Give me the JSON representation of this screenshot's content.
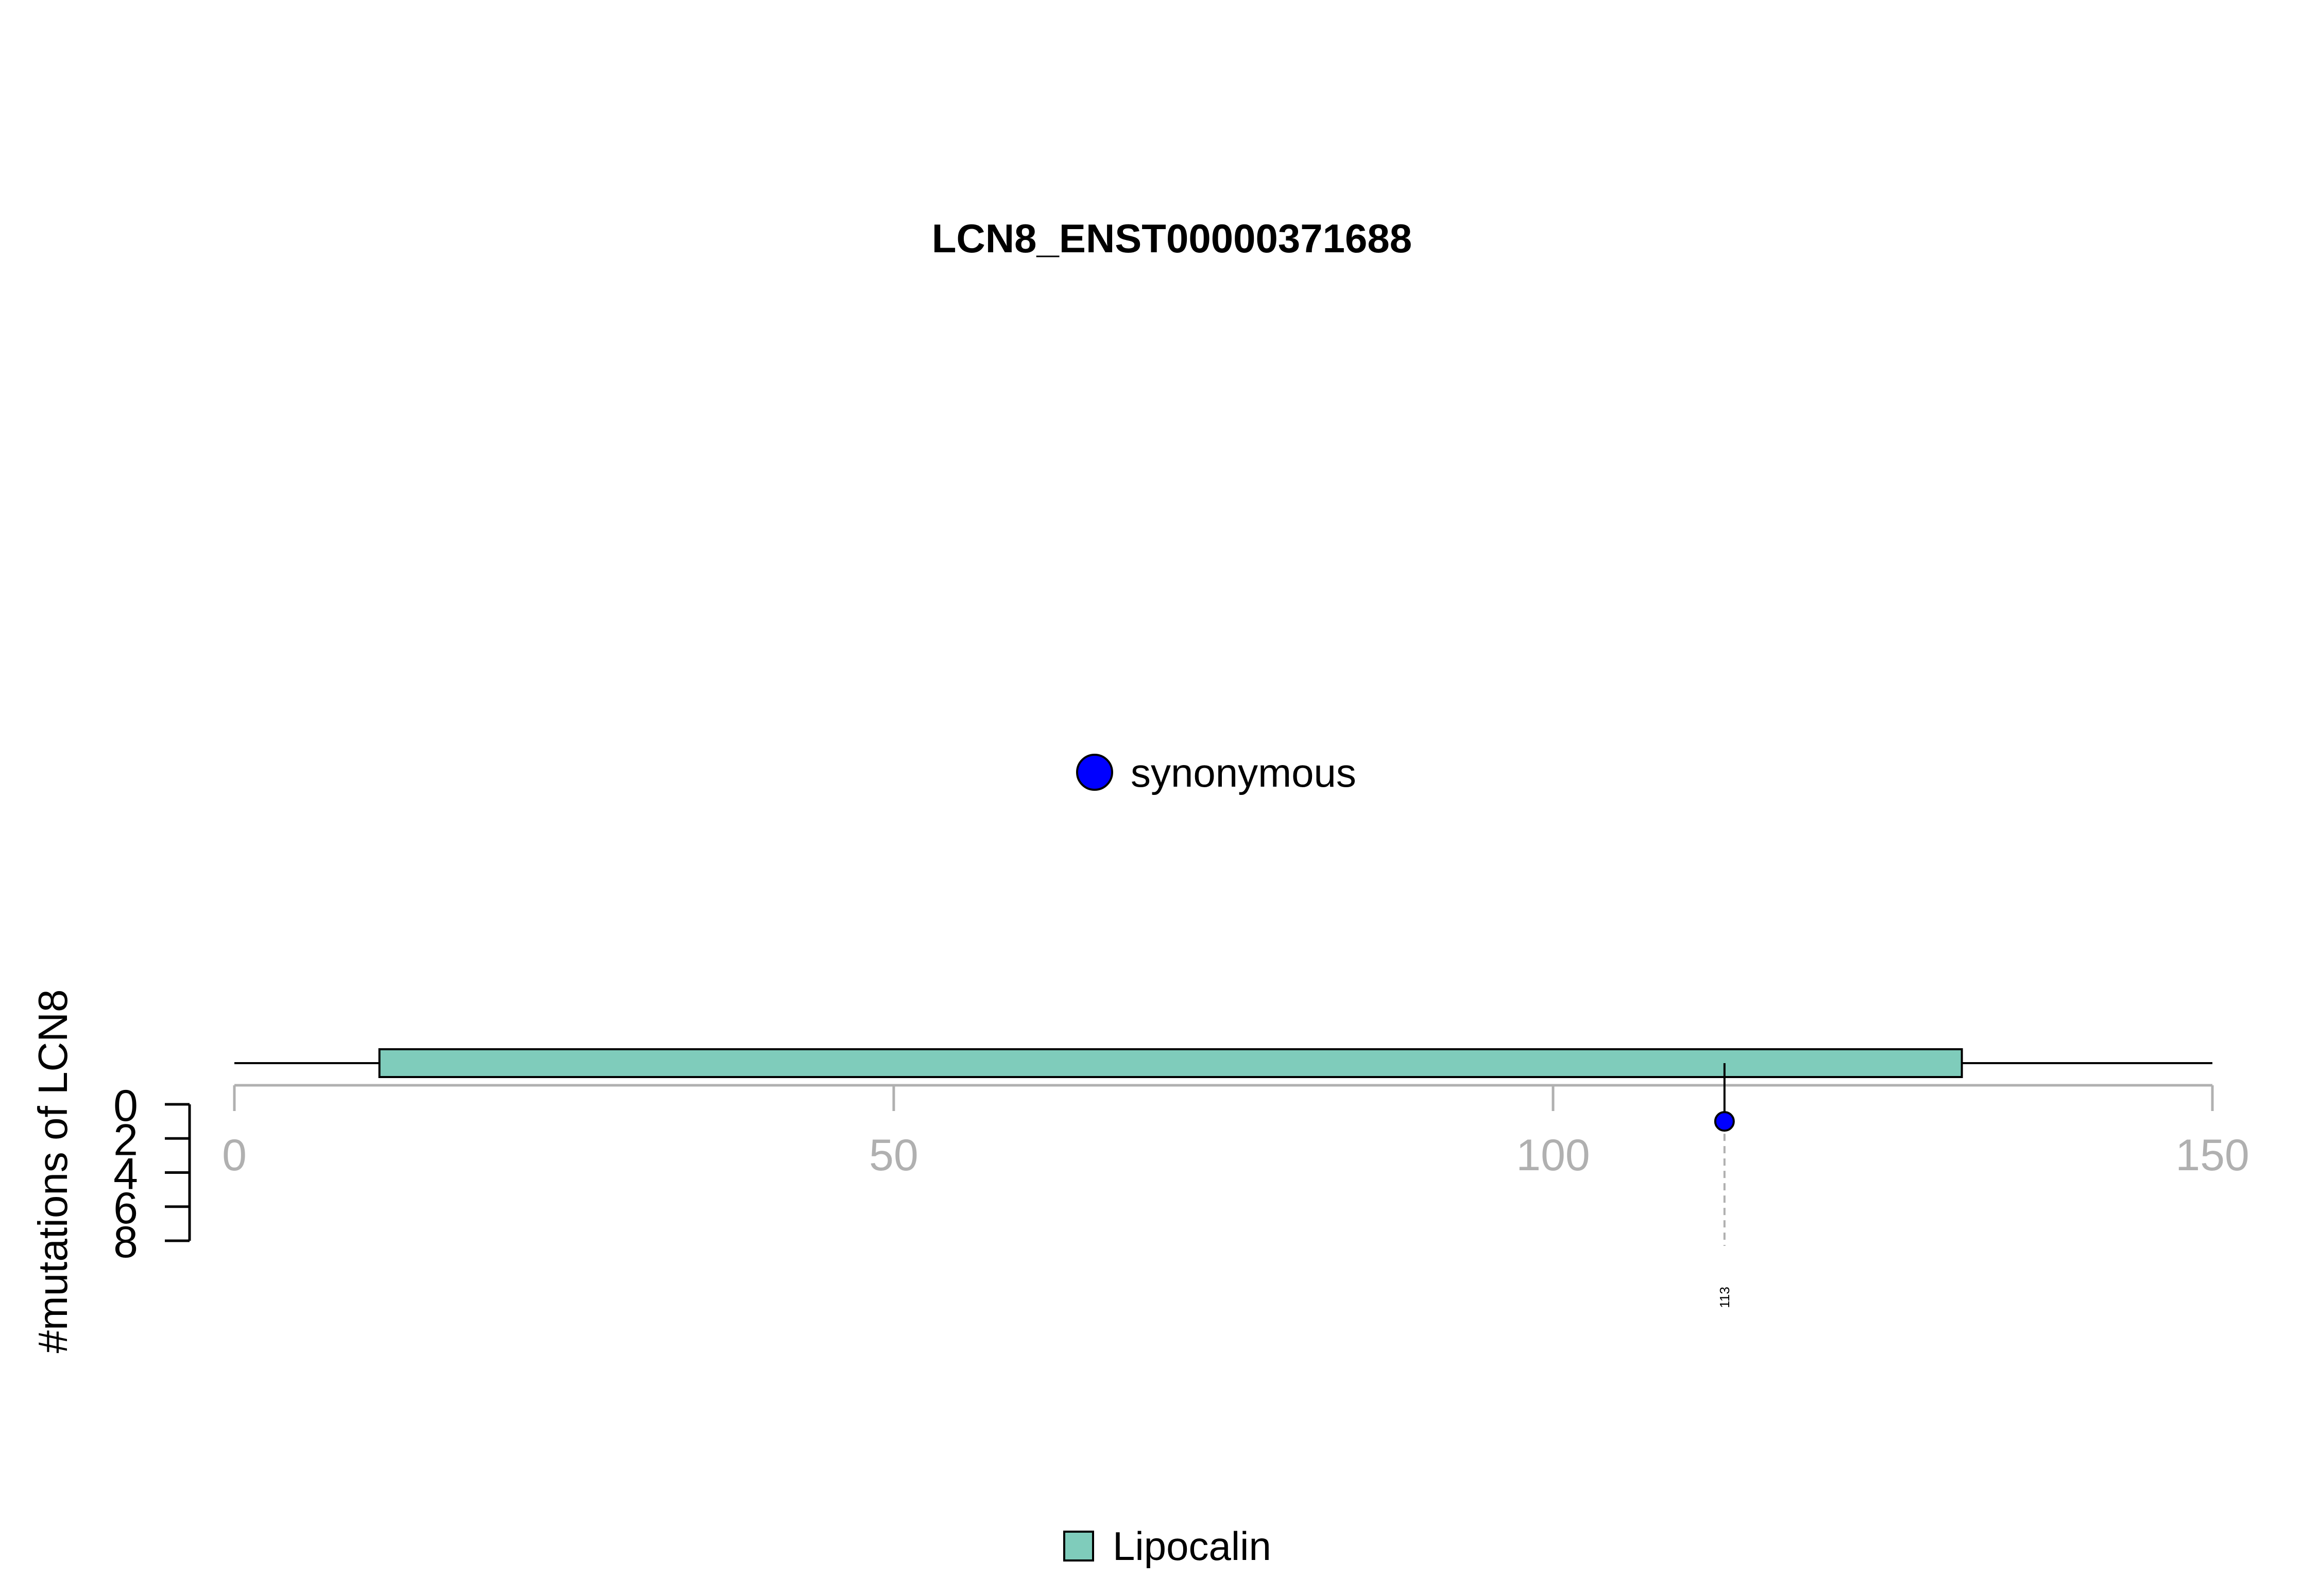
{
  "chart_data": {
    "type": "lollipop",
    "title": "LCN8_ENST00000371688",
    "xlim": [
      0,
      150
    ],
    "x_ticks": [
      0,
      50,
      100,
      150
    ],
    "protein_length": 150,
    "ylabel": "#mutations of LCN8",
    "ylim": [
      0,
      8
    ],
    "y_ticks": [
      0,
      2,
      4,
      6,
      8
    ],
    "domains": [
      {
        "name": "Lipocalin",
        "start": 11,
        "end": 131,
        "color": "#7fccbb"
      }
    ],
    "mutations": [
      {
        "position": 113,
        "count": 1,
        "type": "synonymous",
        "label": "113",
        "color": "#0000ff"
      }
    ],
    "mutation_legend": [
      {
        "label": "synonymous",
        "color": "#0000ff"
      }
    ],
    "domain_legend": [
      {
        "label": "Lipocalin",
        "color": "#7fccbb"
      }
    ]
  }
}
